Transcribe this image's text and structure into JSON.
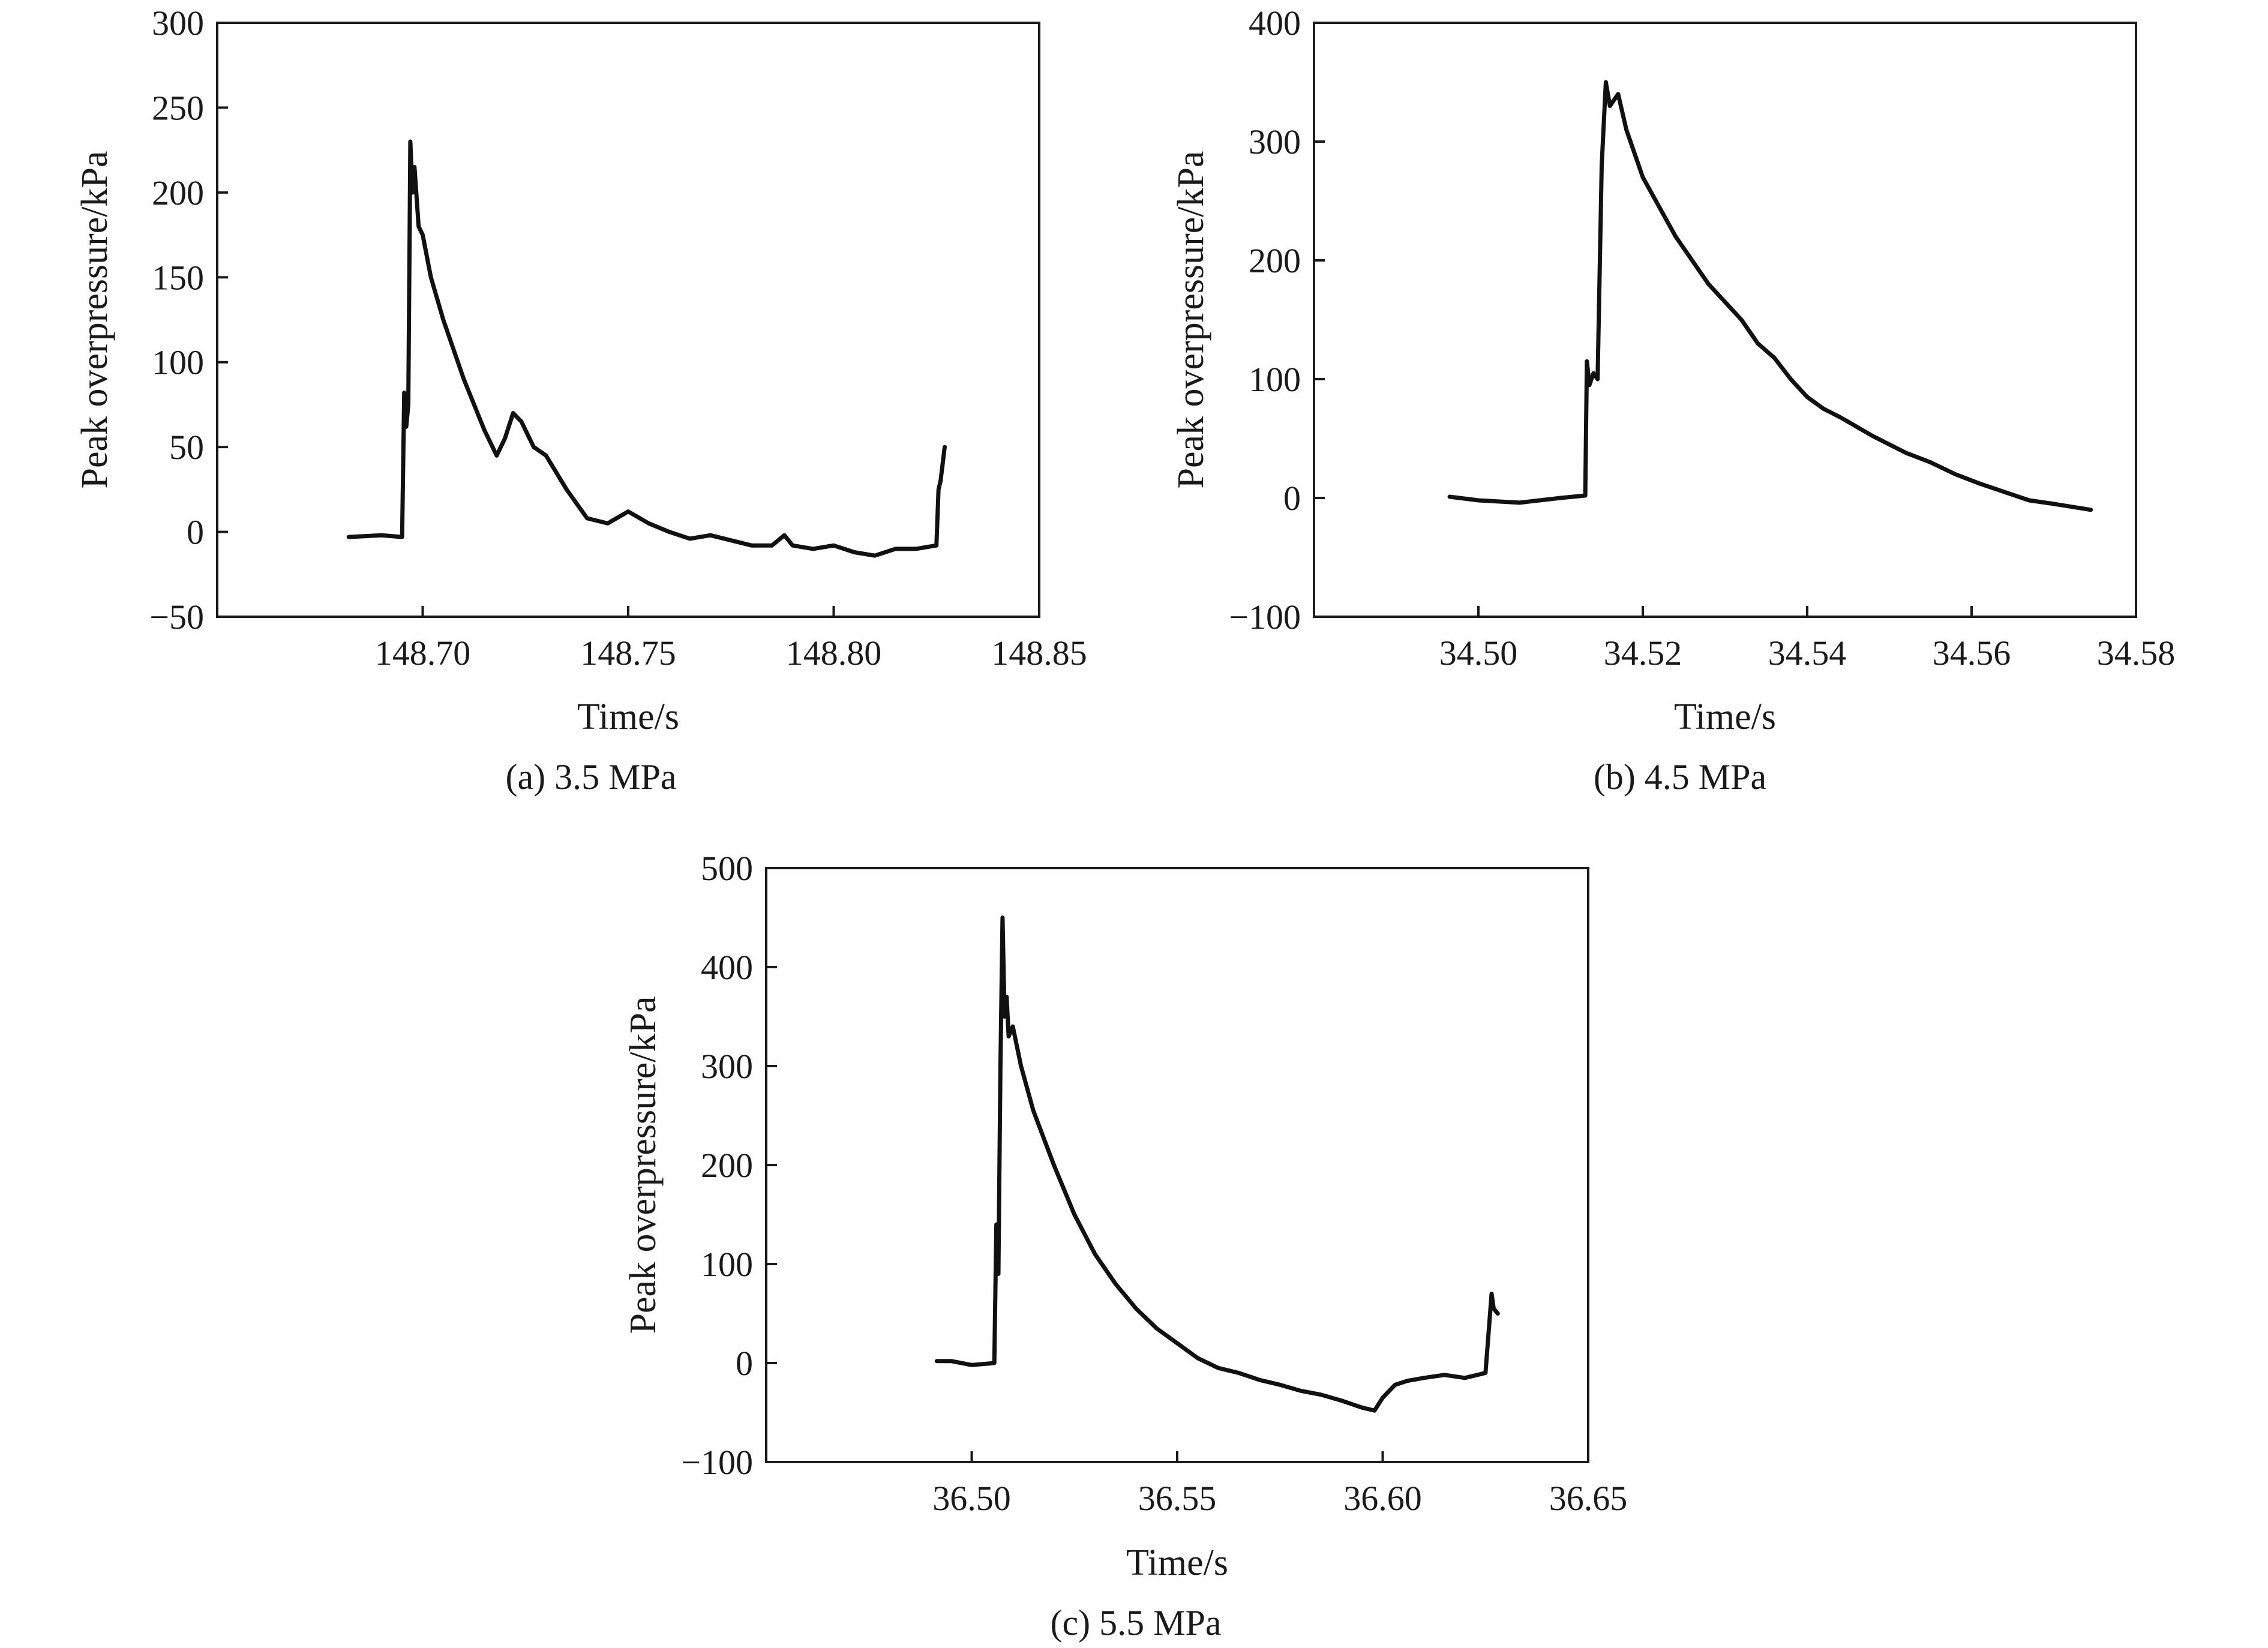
{
  "chart_data": [
    {
      "type": "line",
      "caption": "(a) 3.5 MPa",
      "xlabel": "Time/s",
      "ylabel": "Peak overpressure/kPa",
      "xlim": [
        148.65,
        148.85
      ],
      "ylim": [
        -50,
        300
      ],
      "xticks": [
        "148.70",
        "148.75",
        "148.80",
        "148.85"
      ],
      "yticks": [
        "300",
        "250",
        "200",
        "150",
        "100",
        "50",
        "0",
        "−50"
      ],
      "grid": false,
      "series": [
        {
          "x": [
            148.682,
            148.69,
            148.695,
            148.6955,
            148.696,
            148.6965,
            148.697,
            148.6975,
            148.698,
            148.699,
            148.7,
            148.702,
            148.705,
            148.71,
            148.715,
            148.718,
            148.72,
            148.722,
            148.724,
            148.727,
            148.73,
            148.735,
            148.74,
            148.745,
            148.75,
            148.755,
            148.76,
            148.765,
            148.77,
            148.775,
            148.78,
            148.785,
            148.788,
            148.79,
            148.795,
            148.8,
            148.805,
            148.81,
            148.815,
            148.82,
            148.825,
            148.8255,
            148.826,
            148.827
          ],
          "y": [
            -3,
            -2,
            -3,
            82,
            62,
            75,
            230,
            200,
            215,
            180,
            175,
            150,
            125,
            90,
            60,
            45,
            55,
            70,
            65,
            50,
            45,
            25,
            8,
            5,
            12,
            5,
            0,
            -4,
            -2,
            -5,
            -8,
            -8,
            -2,
            -8,
            -10,
            -8,
            -12,
            -14,
            -10,
            -10,
            -8,
            25,
            30,
            50
          ]
        }
      ]
    },
    {
      "type": "line",
      "caption": "(b) 4.5 MPa",
      "xlabel": "Time/s",
      "ylabel": "Peak overpressure/kPa",
      "xlim": [
        34.48,
        34.58
      ],
      "ylim": [
        -100,
        400
      ],
      "xticks": [
        "34.50",
        "34.52",
        "34.54",
        "34.56",
        "34.58"
      ],
      "yticks": [
        "400",
        "300",
        "200",
        "100",
        "0",
        "−100"
      ],
      "grid": false,
      "series": [
        {
          "x": [
            34.4965,
            34.5,
            34.505,
            34.51,
            34.513,
            34.5132,
            34.5135,
            34.514,
            34.5145,
            34.515,
            34.5155,
            34.516,
            34.517,
            34.518,
            34.519,
            34.52,
            34.522,
            34.524,
            34.526,
            34.528,
            34.53,
            34.532,
            34.534,
            34.536,
            34.538,
            34.54,
            34.542,
            34.544,
            34.546,
            34.548,
            34.55,
            34.552,
            34.555,
            34.558,
            34.561,
            34.564,
            34.567,
            34.57,
            34.5745
          ],
          "y": [
            1,
            -2,
            -4,
            0,
            2,
            115,
            95,
            105,
            100,
            280,
            350,
            330,
            340,
            310,
            290,
            270,
            245,
            220,
            200,
            180,
            165,
            150,
            130,
            118,
            100,
            85,
            75,
            68,
            60,
            52,
            45,
            38,
            30,
            20,
            12,
            5,
            -2,
            -5,
            -10
          ]
        }
      ]
    },
    {
      "type": "line",
      "caption": "(c) 5.5 MPa",
      "xlabel": "Time/s",
      "ylabel": "Peak overpressure/kPa",
      "xlim": [
        36.45,
        36.65
      ],
      "ylim": [
        -100,
        500
      ],
      "xticks": [
        "36.50",
        "36.55",
        "36.60",
        "36.65"
      ],
      "yticks": [
        "500",
        "400",
        "300",
        "200",
        "100",
        "0",
        "−100"
      ],
      "grid": false,
      "series": [
        {
          "x": [
            36.4915,
            36.495,
            36.5,
            36.5055,
            36.506,
            36.5065,
            36.507,
            36.5075,
            36.508,
            36.5085,
            36.509,
            36.51,
            36.512,
            36.515,
            36.52,
            36.525,
            36.53,
            36.535,
            36.54,
            36.545,
            36.55,
            36.555,
            36.56,
            36.565,
            36.57,
            36.575,
            36.58,
            36.585,
            36.59,
            36.595,
            36.598,
            36.6,
            36.603,
            36.606,
            36.61,
            36.615,
            36.62,
            36.625,
            36.6265,
            36.627,
            36.628
          ],
          "y": [
            2,
            2,
            -2,
            0,
            140,
            90,
            300,
            450,
            350,
            370,
            330,
            340,
            300,
            255,
            200,
            150,
            110,
            80,
            55,
            35,
            20,
            5,
            -5,
            -10,
            -17,
            -22,
            -28,
            -32,
            -38,
            -45,
            -48,
            -35,
            -22,
            -18,
            -15,
            -12,
            -15,
            -10,
            70,
            55,
            50
          ]
        }
      ]
    }
  ]
}
